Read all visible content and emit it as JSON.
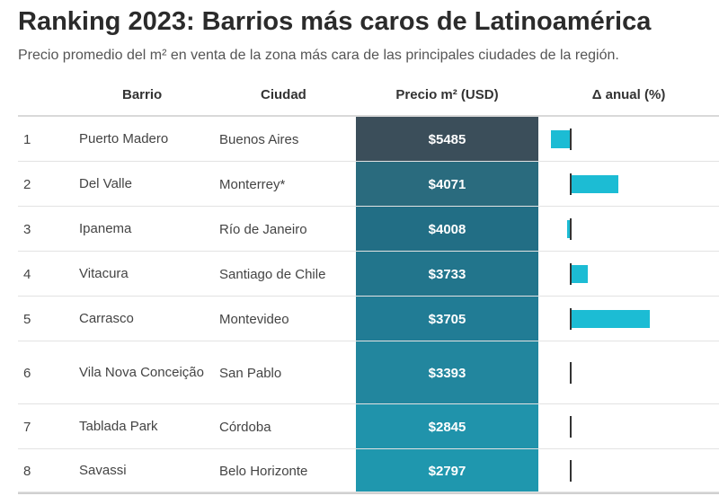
{
  "title": "Ranking 2023: Barrios más caros de Latinoamérica",
  "subtitle": "Precio promedio del m² en venta de la zona más cara de las principales ciudades de la región.",
  "columns": {
    "barrio": "Barrio",
    "ciudad": "Ciudad",
    "precio": "Precio m² (USD)",
    "delta": "Δ anual (%)"
  },
  "colors": {
    "bar": "#1cbcd4",
    "price_scale": [
      "#3b4e5a",
      "#2a6b7e",
      "#226e85",
      "#22758c",
      "#217c95",
      "#22869e",
      "#2093ab",
      "#1f97ae"
    ]
  },
  "chart_data": {
    "type": "table",
    "title": "Ranking 2023: Barrios más caros de Latinoamérica",
    "subtitle": "Precio promedio del m² en venta de la zona más cara de las principales ciudades de la región.",
    "delta_domain": [
      -5,
      15
    ],
    "rows": [
      {
        "rank": "1",
        "barrio": "Puerto Madero",
        "ciudad": "Buenos Aires",
        "precio": 5485,
        "precio_label": "$5485",
        "delta": -4.5
      },
      {
        "rank": "2",
        "barrio": "Del Valle",
        "ciudad": "Monterrey*",
        "precio": 4071,
        "precio_label": "$4071",
        "delta": 10.5
      },
      {
        "rank": "3",
        "barrio": "Ipanema",
        "ciudad": "Río de Janeiro",
        "precio": 4008,
        "precio_label": "$4008",
        "delta": -0.8
      },
      {
        "rank": "4",
        "barrio": "Vitacura",
        "ciudad": "Santiago de Chile",
        "precio": 3733,
        "precio_label": "$3733",
        "delta": 3.8
      },
      {
        "rank": "5",
        "barrio": "Carrasco",
        "ciudad": "Montevideo",
        "precio": 3705,
        "precio_label": "$3705",
        "delta": 17.5
      },
      {
        "rank": "6",
        "barrio": "Vila Nova Conceição",
        "ciudad": "San Pablo",
        "precio": 3393,
        "precio_label": "$3393",
        "delta": 0
      },
      {
        "rank": "7",
        "barrio": "Tablada Park",
        "ciudad": "Córdoba",
        "precio": 2845,
        "precio_label": "$2845",
        "delta": 0
      },
      {
        "rank": "8",
        "barrio": "Savassi",
        "ciudad": "Belo Horizonte",
        "precio": 2797,
        "precio_label": "$2797",
        "delta": 0
      }
    ]
  }
}
